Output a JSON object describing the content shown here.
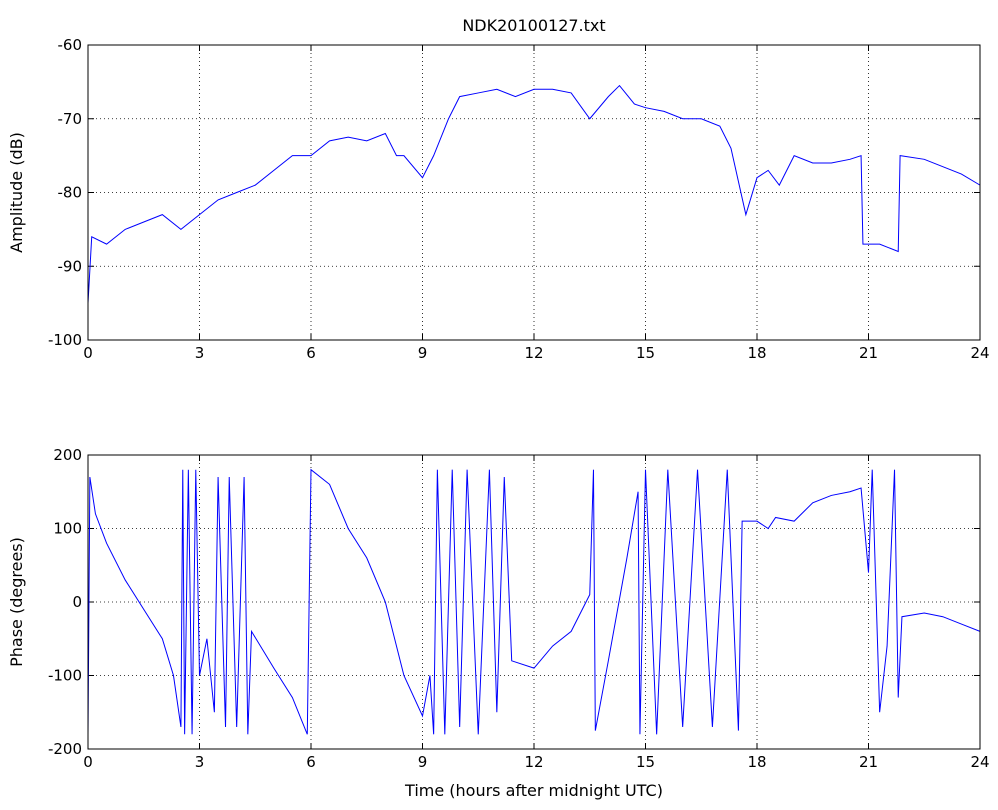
{
  "chart_data": [
    {
      "type": "line",
      "title": "NDK20100127.txt",
      "ylabel": "Amplitude (dB)",
      "x": [
        0,
        0.1,
        0.5,
        1,
        1.5,
        2,
        2.5,
        3,
        3.5,
        4,
        4.5,
        5,
        5.5,
        6,
        6.5,
        7,
        7.5,
        8,
        8.3,
        8.5,
        9,
        9.3,
        9.7,
        10,
        10.5,
        11,
        11.5,
        12,
        12.5,
        13,
        13.5,
        14,
        14.3,
        14.7,
        15,
        15.5,
        16,
        16.5,
        17,
        17.3,
        17.7,
        18,
        18.3,
        18.6,
        19,
        19.5,
        20,
        20.5,
        20.8,
        20.85,
        21.3,
        21.8,
        21.85,
        22.5,
        23,
        23.5,
        24
      ],
      "series": [
        {
          "color": "#0000ff",
          "values": [
            -95,
            -86,
            -87,
            -85,
            -84,
            -83,
            -85,
            -83,
            -81,
            -80,
            -79,
            -77,
            -75,
            -75,
            -73,
            -72.5,
            -73,
            -72,
            -75,
            -75,
            -78,
            -75,
            -70,
            -67,
            -66.5,
            -66,
            -67,
            -66,
            -66,
            -66.5,
            -70,
            -67,
            -65.5,
            -68,
            -68.5,
            -69,
            -70,
            -70,
            -71,
            -74,
            -83,
            -78,
            -77,
            -79,
            -75,
            -76,
            -76,
            -75.5,
            -75,
            -87,
            -87,
            -88,
            -75,
            -75.5,
            -76.5,
            -77.5,
            -79
          ]
        }
      ],
      "xlim": [
        0,
        24
      ],
      "ylim": [
        -100,
        -60
      ],
      "xticks": [
        0,
        3,
        6,
        9,
        12,
        15,
        18,
        21,
        24
      ],
      "yticks": [
        -100,
        -90,
        -80,
        -70,
        -60
      ],
      "grid": true
    },
    {
      "type": "line",
      "ylabel": "Phase (degrees)",
      "xlabel": "Time (hours after midnight UTC)",
      "x": [
        0,
        0.05,
        0.2,
        0.5,
        1,
        1.5,
        2,
        2.3,
        2.5,
        2.55,
        2.6,
        2.7,
        2.8,
        2.9,
        3,
        3.2,
        3.4,
        3.5,
        3.7,
        3.8,
        4,
        4.2,
        4.3,
        4.4,
        5,
        5.5,
        5.9,
        6,
        6.5,
        7,
        7.5,
        8,
        8.5,
        9,
        9.2,
        9.3,
        9.4,
        9.6,
        9.8,
        10,
        10.2,
        10.5,
        10.8,
        11,
        11.2,
        11.4,
        12,
        12.5,
        13,
        13.5,
        13.6,
        13.65,
        14,
        14.5,
        14.8,
        14.85,
        15,
        15.3,
        15.6,
        16,
        16.4,
        16.8,
        17.2,
        17.5,
        17.6,
        18,
        18.3,
        18.5,
        19,
        19.5,
        20,
        20.5,
        20.8,
        21,
        21.1,
        21.3,
        21.5,
        21.7,
        21.8,
        21.9,
        22.5,
        23,
        23.5,
        24
      ],
      "series": [
        {
          "color": "#0000ff",
          "values": [
            -180,
            170,
            120,
            80,
            30,
            -10,
            -50,
            -100,
            -170,
            180,
            -180,
            180,
            -180,
            180,
            -100,
            -50,
            -150,
            170,
            -170,
            170,
            -170,
            170,
            -180,
            -40,
            -90,
            -130,
            -180,
            180,
            160,
            100,
            60,
            0,
            -100,
            -155,
            -100,
            -180,
            180,
            -180,
            180,
            -170,
            180,
            -180,
            180,
            -150,
            170,
            -80,
            -90,
            -60,
            -40,
            10,
            180,
            -175,
            -80,
            60,
            150,
            -180,
            180,
            -180,
            180,
            -170,
            180,
            -170,
            180,
            -175,
            110,
            110,
            100,
            115,
            110,
            135,
            145,
            150,
            155,
            40,
            180,
            -150,
            -60,
            180,
            -130,
            -20,
            -15,
            -20,
            -30,
            -40
          ]
        }
      ],
      "xlim": [
        0,
        24
      ],
      "ylim": [
        -200,
        200
      ],
      "xticks": [
        0,
        3,
        6,
        9,
        12,
        15,
        18,
        21,
        24
      ],
      "yticks": [
        -200,
        -100,
        0,
        100,
        200
      ],
      "grid": true
    }
  ]
}
